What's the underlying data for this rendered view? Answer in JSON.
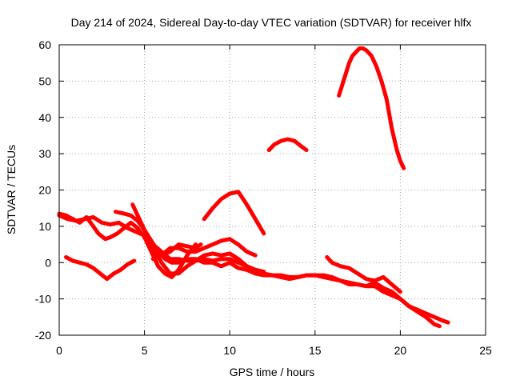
{
  "chart_data": {
    "type": "line",
    "title": "Day 214 of 2024, Sidereal Day-to-day VTEC variation (SDTVAR) for receiver hlfx",
    "xlabel": "GPS time / hours",
    "ylabel": "SDTVAR / TECUs",
    "xlim": [
      0,
      25
    ],
    "ylim": [
      -20,
      60
    ],
    "xticks": [
      0,
      5,
      10,
      15,
      20,
      25
    ],
    "yticks": [
      -20,
      -10,
      0,
      10,
      20,
      30,
      40,
      50,
      60
    ],
    "xtick_labels": [
      "0",
      "5",
      "10",
      "15",
      "20",
      "25"
    ],
    "ytick_labels": [
      "-20",
      "-10",
      "0",
      "10",
      "20",
      "30",
      "40",
      "50",
      "60"
    ],
    "grid": true,
    "series": [
      {
        "name": "s1",
        "x": [
          0.0,
          0.5,
          1.0,
          1.5,
          2.0,
          2.5,
          3.0,
          3.5,
          4.0,
          4.5,
          5.0,
          5.5,
          6.0,
          6.5,
          7.0,
          7.5,
          8.0,
          8.5,
          9.0,
          9.5,
          10.0,
          10.5,
          11.0,
          11.5,
          12.0
        ],
        "y": [
          13,
          12,
          11.5,
          12,
          12.5,
          11,
          10.5,
          11,
          9.5,
          8.5,
          7.5,
          5,
          3,
          1,
          1,
          0.5,
          0.5,
          1,
          0.5,
          1,
          1,
          0,
          -1,
          -2,
          -2.5
        ]
      },
      {
        "name": "s2",
        "x": [
          0.0,
          0.4,
          0.8,
          1.2,
          1.6,
          2.0,
          2.3,
          2.7,
          3.0,
          3.4,
          3.8,
          4.2,
          4.6,
          5.0,
          5.4,
          5.8,
          6.2,
          6.6,
          7.0,
          7.5,
          8.0
        ],
        "y": [
          13.5,
          13,
          12,
          11,
          12.5,
          10,
          8,
          6.5,
          7,
          8,
          9.5,
          11,
          9.5,
          7,
          3,
          -1,
          -3,
          -4,
          -2,
          2,
          5
        ]
      },
      {
        "name": "s3",
        "x": [
          3.3,
          3.8,
          4.2,
          4.6,
          5.0,
          5.4,
          5.8,
          6.2,
          6.6,
          7.0,
          7.5,
          8.0,
          8.5,
          9.0,
          9.5,
          10.0,
          10.5,
          11.0,
          11.5,
          12.0,
          12.5,
          13.0,
          13.5,
          14.0,
          14.5,
          15.0,
          15.5,
          16.0,
          16.5,
          17.0,
          17.5,
          18.0,
          18.5,
          19.0,
          19.5,
          20.0,
          20.5,
          21.0,
          21.5,
          22.0,
          22.5,
          22.8
        ],
        "y": [
          14,
          13.5,
          13,
          11.5,
          9,
          6,
          3,
          1,
          0,
          0,
          1,
          1,
          0,
          0,
          -1,
          0,
          -1.5,
          -2,
          -3,
          -3.5,
          -3.5,
          -3.5,
          -4,
          -4,
          -3.5,
          -3.5,
          -4,
          -4.5,
          -5,
          -6,
          -6,
          -6.5,
          -5.5,
          -7,
          -8,
          -10,
          -12,
          -13,
          -14,
          -15,
          -16,
          -16.5
        ]
      },
      {
        "name": "s4",
        "x": [
          4.3,
          4.7,
          5.1,
          5.5,
          6.0,
          6.5,
          7.0,
          7.5,
          8.0,
          8.5,
          9.0,
          9.5,
          10.0,
          10.5,
          11.0,
          11.5,
          12.0,
          12.5,
          13.0,
          13.5,
          14.0,
          14.5,
          15.0,
          15.5,
          16.0,
          16.5,
          17.0,
          17.5,
          18.0,
          18.5,
          19.0,
          19.5,
          20.0,
          20.5,
          21.0,
          21.5,
          22.0,
          22.3
        ],
        "y": [
          16,
          12,
          8,
          4,
          0,
          -3,
          -3,
          -1,
          0.5,
          2,
          2.5,
          2,
          2.5,
          1,
          -1,
          -2,
          -3,
          -3.5,
          -4,
          -4.5,
          -4,
          -3.5,
          -3.5,
          -3.5,
          -4,
          -5,
          -5.5,
          -6,
          -6.5,
          -6.5,
          -8,
          -9,
          -10,
          -12,
          -13.5,
          -15,
          -17,
          -17.5
        ]
      },
      {
        "name": "s5",
        "x": [
          5.5,
          6.0,
          6.5,
          7.0,
          7.5,
          8.0,
          8.5,
          9.0,
          9.5,
          10.0,
          10.5,
          11.0,
          11.5
        ],
        "y": [
          1,
          2,
          4,
          4,
          3,
          3,
          4,
          5,
          6,
          6.5,
          5,
          3,
          2
        ]
      },
      {
        "name": "s6",
        "x": [
          6.0,
          6.5,
          7.0,
          7.5,
          8.0,
          8.3
        ],
        "y": [
          2,
          3,
          5,
          4.5,
          4,
          5
        ]
      },
      {
        "name": "s7",
        "x": [
          8.5,
          9.0,
          9.5,
          10.0,
          10.5,
          11.0,
          11.5,
          12.0
        ],
        "y": [
          12,
          15,
          17.5,
          19,
          19.5,
          16,
          12,
          8
        ]
      },
      {
        "name": "s8",
        "x": [
          0.4,
          0.8,
          1.2,
          1.6,
          2.0,
          2.4,
          2.8,
          3.2,
          3.6,
          4.0,
          4.4
        ],
        "y": [
          1.5,
          0.5,
          0,
          -0.5,
          -1.5,
          -3,
          -4.5,
          -3,
          -2,
          -0.5,
          0.5
        ]
      },
      {
        "name": "s9",
        "x": [
          12.3,
          12.6,
          13.0,
          13.4,
          13.8,
          14.2,
          14.5
        ],
        "y": [
          31,
          32.5,
          33.5,
          34,
          33.5,
          32,
          31
        ]
      },
      {
        "name": "s10",
        "x": [
          16.4,
          16.6,
          16.8,
          17.0,
          17.2,
          17.4,
          17.6,
          17.8,
          18.0,
          18.3,
          18.6,
          18.9,
          19.2,
          19.5,
          19.8,
          20.0,
          20.2
        ],
        "y": [
          46,
          49,
          52,
          55,
          57,
          58,
          59,
          59,
          58.5,
          57,
          54,
          50,
          45,
          37,
          31,
          28,
          26
        ]
      },
      {
        "name": "s11",
        "x": [
          15.7,
          16.0,
          16.5,
          17.0,
          17.5,
          18.0,
          18.5,
          19.0,
          19.5,
          20.0
        ],
        "y": [
          1.5,
          0,
          -1,
          -1.5,
          -3,
          -4.5,
          -5,
          -4,
          -6,
          -8
        ]
      }
    ]
  }
}
